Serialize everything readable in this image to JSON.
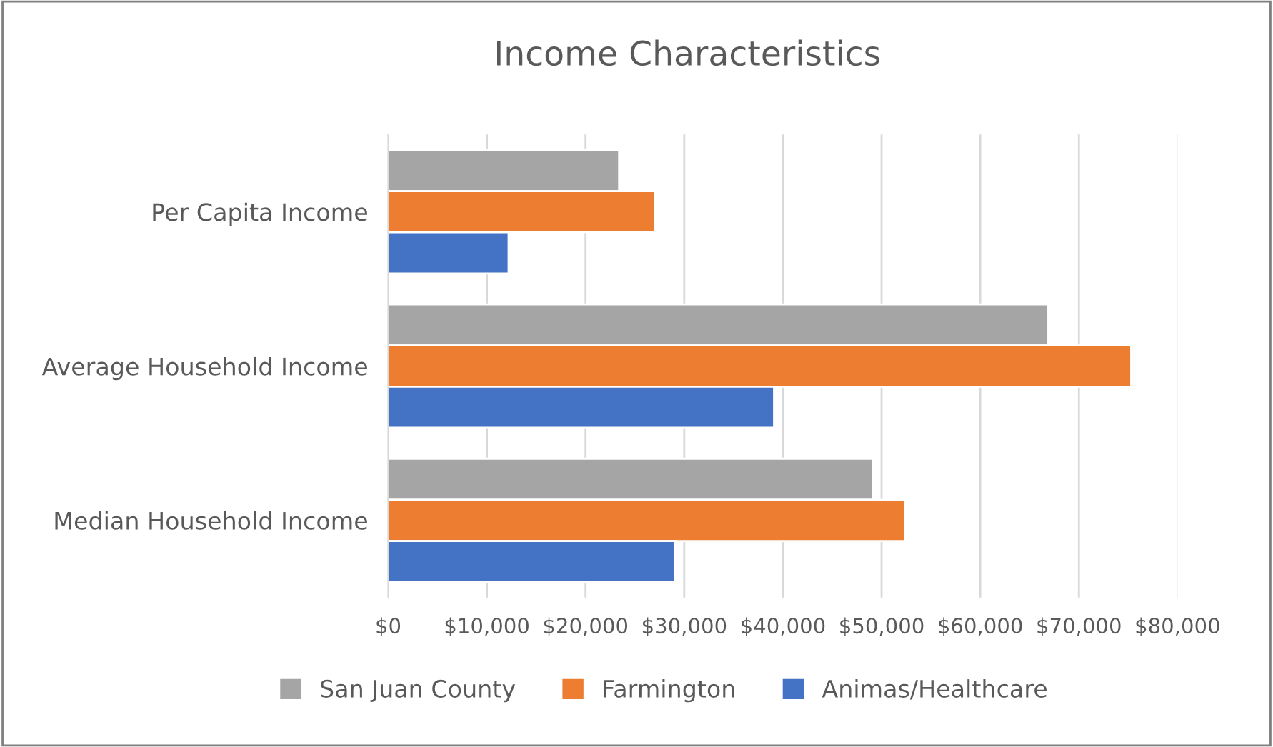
{
  "chart_data": {
    "type": "bar",
    "orientation": "horizontal",
    "title": "Income Characteristics",
    "categories": [
      "Per Capita Income",
      "Average Household Income",
      "Median Household Income"
    ],
    "series": [
      {
        "name": "San Juan County",
        "color": "#a5a5a5",
        "values": [
          23400,
          66900,
          49100
        ]
      },
      {
        "name": "Farmington",
        "color": "#ed7d31",
        "values": [
          27000,
          75300,
          52400
        ]
      },
      {
        "name": "Animas/Healthcare",
        "color": "#4472c4",
        "values": [
          12200,
          39100,
          29100
        ]
      }
    ],
    "xlim": [
      0,
      80000
    ],
    "xticks": [
      {
        "value": 0,
        "label": "$0"
      },
      {
        "value": 10000,
        "label": "$10,000"
      },
      {
        "value": 20000,
        "label": "$20,000"
      },
      {
        "value": 30000,
        "label": "$30,000"
      },
      {
        "value": 40000,
        "label": "$40,000"
      },
      {
        "value": 50000,
        "label": "$50,000"
      },
      {
        "value": 60000,
        "label": "$60,000"
      },
      {
        "value": 70000,
        "label": "$70,000"
      },
      {
        "value": 80000,
        "label": "$80,000"
      }
    ],
    "grid": "x",
    "legend": "bottom"
  }
}
